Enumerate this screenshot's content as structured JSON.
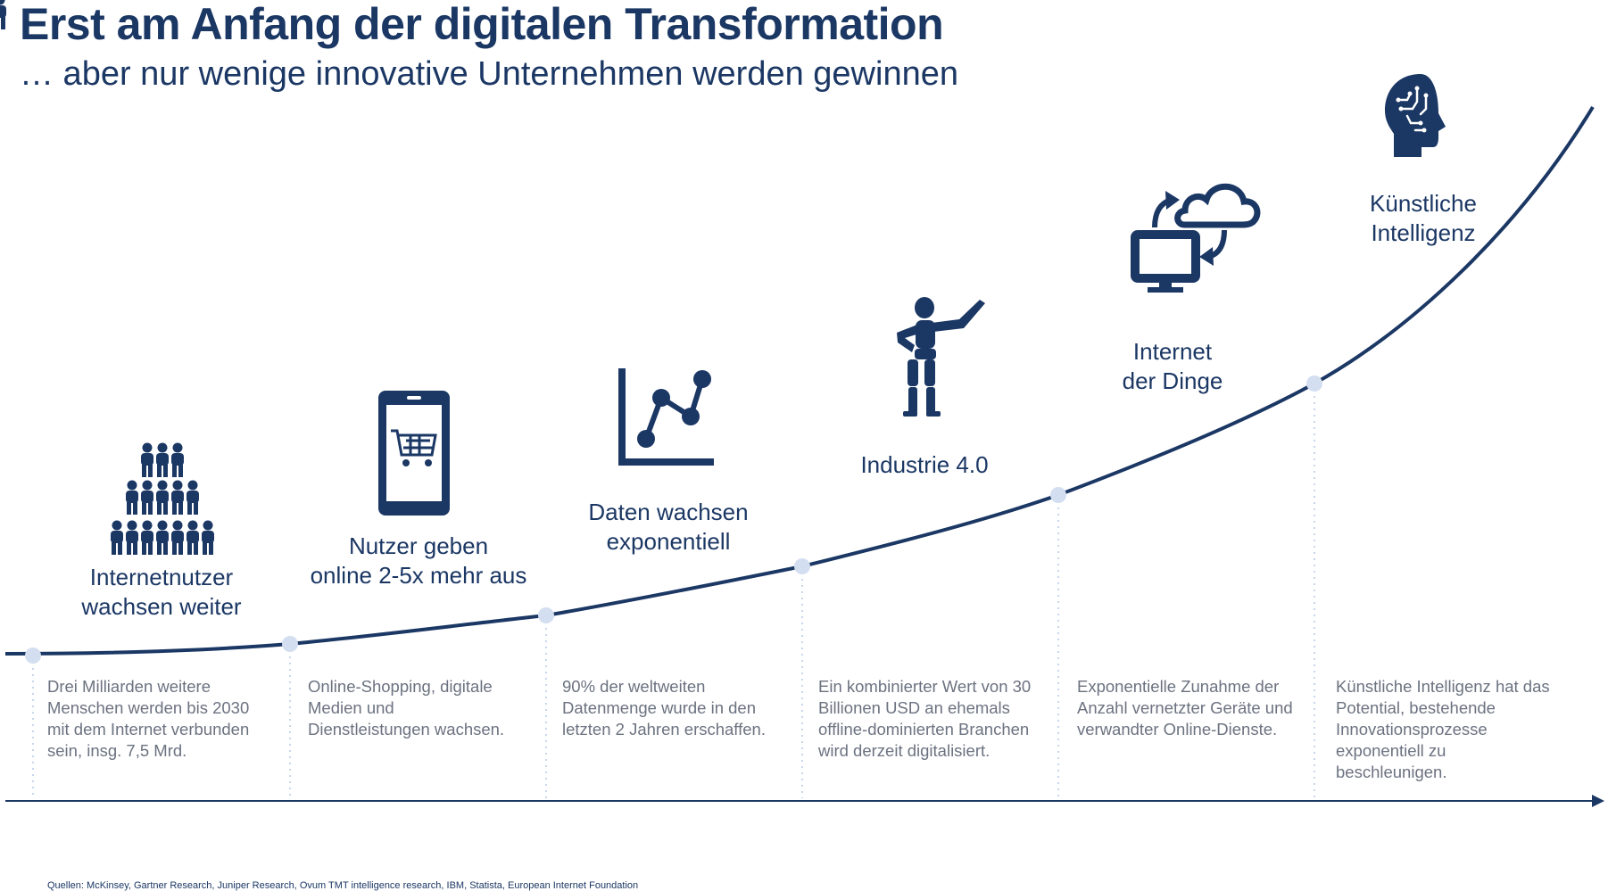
{
  "title": "Erst am Anfang der digitalen Transformation",
  "subtitle": "… aber nur wenige innovative Unternehmen werden gewinnen",
  "colors": {
    "primary": "#1b3764",
    "point": "#d3def0",
    "dotted": "#c7d6ec",
    "text_gray": "#6b7280"
  },
  "stages": [
    {
      "icon": "people-group-icon",
      "label": "Internetnutzer\nwachsen weiter",
      "description": "Drei Milliarden weitere\nMenschen werden bis 2030\nmit dem Internet verbunden\nsein, insg. 7,5 Mrd."
    },
    {
      "icon": "tablet-cart-icon",
      "label": "Nutzer geben\nonline 2-5x mehr aus",
      "description": "Online-Shopping, digitale\nMedien und\nDienstleistungen wachsen."
    },
    {
      "icon": "line-chart-icon",
      "label": "Daten wachsen\nexponentiell",
      "description": "90% der weltweiten\nDatenmenge wurde in den\nletzten 2 Jahren erschaffen."
    },
    {
      "icon": "robot-figure-icon",
      "label": "Industrie 4.0",
      "description": "Ein kombinierter Wert von 30\nBillionen USD an ehemals\noffline-dominierten Branchen\nwird derzeit digitalisiert."
    },
    {
      "icon": "cloud-monitor-icon",
      "label": "Internet\nder Dinge",
      "description": "Exponentielle Zunahme der\nAnzahl vernetzter Geräte und\nverwandter Online-Dienste."
    },
    {
      "icon": "brain-head-icon",
      "label": "Künstliche\nIntelligenz",
      "description": "Künstliche Intelligenz hat das\nPotential, bestehende\nInnovationsprozesse\nexponentiell zu\nbeschleunigen."
    }
  ],
  "sources": "Quellen: McKinsey, Gartner Research, Juniper Research, Ovum TMT intelligence research, IBM, Statista, European Internet Foundation"
}
